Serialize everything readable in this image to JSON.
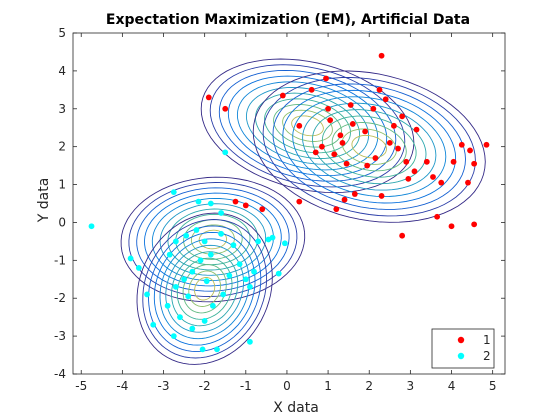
{
  "chart_data": {
    "type": "scatter",
    "title": "Expectation Maximization (EM), Artificial Data",
    "xlabel": "X data",
    "ylabel": "Y data",
    "xlim": [
      -5.2,
      5.3
    ],
    "ylim": [
      -4,
      5
    ],
    "xticks": [
      -5,
      -4,
      -3,
      -2,
      -1,
      0,
      1,
      2,
      3,
      4,
      5
    ],
    "yticks": [
      -4,
      -3,
      -2,
      -1,
      0,
      1,
      2,
      3,
      4,
      5
    ],
    "grid": false,
    "legend_position": "bottom-right",
    "series": [
      {
        "name": "1",
        "color": "#ff0000",
        "marker": "filled-circle",
        "points": [
          [
            -1.9,
            3.3
          ],
          [
            -1.5,
            3.0
          ],
          [
            -0.1,
            3.35
          ],
          [
            0.3,
            2.55
          ],
          [
            0.6,
            3.5
          ],
          [
            0.95,
            3.8
          ],
          [
            1.05,
            2.7
          ],
          [
            1.3,
            2.3
          ],
          [
            1.35,
            2.1
          ],
          [
            1.15,
            1.8
          ],
          [
            1.6,
            2.6
          ],
          [
            1.9,
            2.4
          ],
          [
            2.1,
            3.0
          ],
          [
            2.25,
            3.5
          ],
          [
            2.3,
            4.4
          ],
          [
            2.5,
            2.1
          ],
          [
            2.6,
            2.55
          ],
          [
            2.8,
            2.8
          ],
          [
            2.7,
            1.95
          ],
          [
            2.9,
            1.6
          ],
          [
            2.95,
            1.15
          ],
          [
            3.1,
            1.35
          ],
          [
            3.4,
            1.6
          ],
          [
            3.55,
            1.2
          ],
          [
            3.75,
            1.05
          ],
          [
            4.05,
            1.6
          ],
          [
            4.25,
            2.05
          ],
          [
            4.45,
            1.9
          ],
          [
            4.55,
            1.55
          ],
          [
            4.85,
            2.05
          ],
          [
            4.4,
            1.05
          ],
          [
            3.65,
            0.15
          ],
          [
            4.0,
            -0.1
          ],
          [
            4.55,
            -0.05
          ],
          [
            2.8,
            -0.35
          ],
          [
            1.2,
            0.35
          ],
          [
            1.4,
            0.6
          ],
          [
            1.65,
            0.75
          ],
          [
            0.3,
            0.55
          ],
          [
            -0.6,
            0.35
          ],
          [
            -1.25,
            0.55
          ],
          [
            -1.0,
            0.45
          ],
          [
            1.45,
            1.55
          ],
          [
            2.3,
            0.7
          ],
          [
            1.95,
            1.5
          ],
          [
            0.85,
            2.0
          ],
          [
            1.55,
            3.1
          ],
          [
            2.4,
            3.25
          ],
          [
            1.0,
            3.0
          ],
          [
            0.7,
            1.85
          ],
          [
            3.15,
            2.45
          ],
          [
            2.15,
            1.7
          ]
        ]
      },
      {
        "name": "2",
        "color": "#00ffff",
        "marker": "filled-circle",
        "points": [
          [
            -4.75,
            -0.1
          ],
          [
            -3.8,
            -0.95
          ],
          [
            -3.6,
            -1.2
          ],
          [
            -3.4,
            -1.9
          ],
          [
            -3.25,
            -2.7
          ],
          [
            -2.85,
            -0.85
          ],
          [
            -2.7,
            -0.5
          ],
          [
            -2.45,
            -0.35
          ],
          [
            -2.2,
            -0.2
          ],
          [
            -2.0,
            -0.5
          ],
          [
            -1.85,
            -0.85
          ],
          [
            -1.6,
            -0.3
          ],
          [
            -1.3,
            -0.6
          ],
          [
            -1.0,
            -1.5
          ],
          [
            -0.9,
            -1.7
          ],
          [
            -0.7,
            -0.5
          ],
          [
            -0.45,
            -0.45
          ],
          [
            -0.2,
            -1.35
          ],
          [
            -0.35,
            -0.4
          ],
          [
            -0.8,
            -1.3
          ],
          [
            -1.6,
            0.25
          ],
          [
            -1.85,
            0.5
          ],
          [
            -2.1,
            -1.0
          ],
          [
            -2.3,
            -1.3
          ],
          [
            -2.5,
            -1.5
          ],
          [
            -2.7,
            -1.7
          ],
          [
            -2.9,
            -2.2
          ],
          [
            -2.6,
            -2.5
          ],
          [
            -2.3,
            -2.8
          ],
          [
            -2.0,
            -2.6
          ],
          [
            -1.8,
            -2.2
          ],
          [
            -1.55,
            -1.9
          ],
          [
            -1.4,
            -1.4
          ],
          [
            -1.15,
            -1.1
          ],
          [
            -2.05,
            -3.35
          ],
          [
            -1.7,
            -3.35
          ],
          [
            -2.75,
            -3.0
          ],
          [
            -0.9,
            -3.15
          ],
          [
            -2.75,
            0.8
          ],
          [
            -2.15,
            0.55
          ],
          [
            -1.5,
            1.85
          ],
          [
            -0.05,
            -0.55
          ],
          [
            -2.4,
            -1.95
          ],
          [
            -1.95,
            -1.55
          ]
        ]
      }
    ],
    "components": [
      {
        "mean": [
          0.5,
          2.55
        ],
        "sx": 1.1,
        "sy": 0.75,
        "rho": -0.25,
        "color": "#1a3fa5"
      },
      {
        "mean": [
          2.0,
          2.0
        ],
        "sx": 1.2,
        "sy": 0.85,
        "rho": -0.2,
        "color": "#1a3fa5"
      },
      {
        "mean": [
          -1.8,
          -0.45
        ],
        "sx": 0.95,
        "sy": 0.7,
        "rho": 0.05,
        "color": "#1a3fa5"
      },
      {
        "mean": [
          -2.0,
          -1.75
        ],
        "sx": 0.7,
        "sy": 0.85,
        "rho": 0.15,
        "color": "#1a3fa5"
      }
    ]
  }
}
